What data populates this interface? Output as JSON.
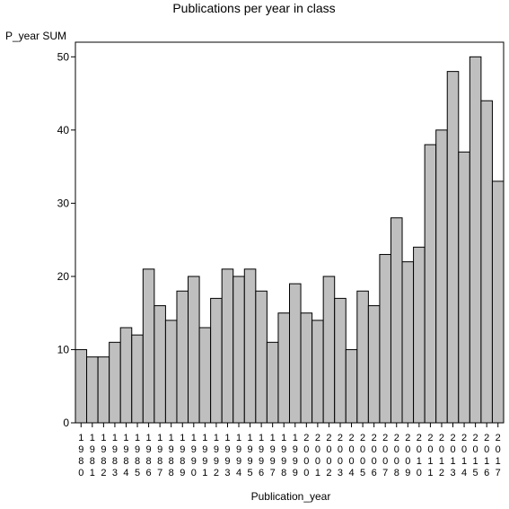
{
  "chart_data": {
    "type": "bar",
    "title": "Publications per year in class",
    "xlabel": "Publication_year",
    "ylabel": "P_year SUM",
    "ylim": [
      0,
      52
    ],
    "yticks": [
      0,
      10,
      20,
      30,
      40,
      50
    ],
    "grid": false,
    "categories": [
      "1980",
      "1981",
      "1982",
      "1983",
      "1984",
      "1985",
      "1986",
      "1987",
      "1988",
      "1989",
      "1990",
      "1991",
      "1992",
      "1993",
      "1994",
      "1995",
      "1996",
      "1997",
      "1998",
      "1999",
      "2000",
      "2001",
      "2002",
      "2003",
      "2004",
      "2005",
      "2006",
      "2007",
      "2008",
      "2009",
      "2010",
      "2011",
      "2012",
      "2013",
      "2014",
      "2015",
      "2016",
      "2017"
    ],
    "values": [
      10,
      9,
      9,
      11,
      13,
      12,
      21,
      16,
      14,
      18,
      20,
      13,
      17,
      21,
      20,
      21,
      18,
      11,
      15,
      19,
      15,
      14,
      20,
      17,
      10,
      18,
      16,
      23,
      28,
      22,
      24,
      38,
      40,
      48,
      37,
      50,
      44,
      33
    ],
    "bar_color": "#bfbfbf",
    "edge_color": "#000000"
  }
}
